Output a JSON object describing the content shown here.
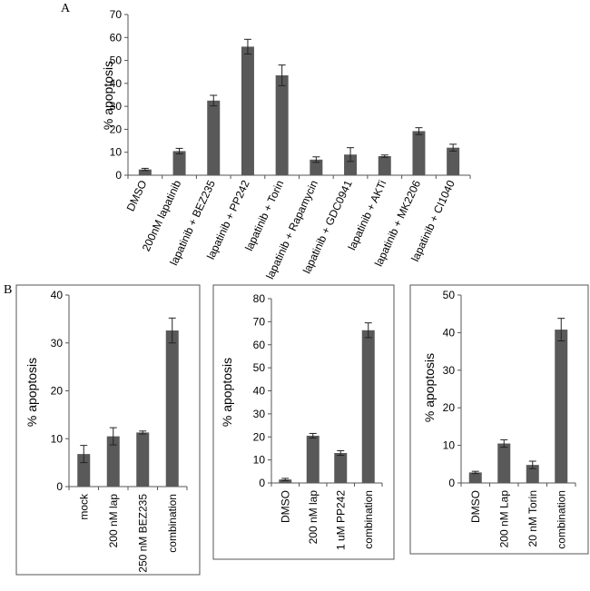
{
  "panel_labels": [
    "A",
    "B"
  ],
  "chart_data": [
    {
      "type": "bar",
      "panel": "A",
      "title": "",
      "ylabel": "% apoptosis",
      "xlabel": "",
      "ylim": [
        0,
        70
      ],
      "yticks": [
        0,
        10,
        20,
        30,
        40,
        50,
        60,
        70
      ],
      "categories": [
        "DMSO",
        "200nM lapatinib",
        "lapatinib + BEZ235",
        "lapatinib + PP242",
        "lapatinib + Torin",
        "lapatinib + Rapamycin",
        "lapatinib + GDC0941",
        "lapatinib + AKTi",
        "lapatinib + MK2206",
        "lapatinib + CI1040"
      ],
      "values": [
        2.5,
        10.5,
        32.5,
        56,
        43.5,
        6.8,
        9,
        8.3,
        19.2,
        12
      ],
      "errors": [
        0.5,
        1.2,
        2.3,
        3.2,
        4.5,
        1.2,
        3,
        0.5,
        1.5,
        1.5
      ],
      "color": "#595959"
    },
    {
      "type": "bar",
      "panel": "B1",
      "ylabel": "% apoptosis",
      "ylim": [
        0,
        40
      ],
      "yticks": [
        0,
        10,
        20,
        30,
        40
      ],
      "categories": [
        "mock",
        "200 nM lap",
        "250 nM BEZ235",
        "combination"
      ],
      "values": [
        6.8,
        10.5,
        11.3,
        32.6
      ],
      "errors": [
        1.8,
        1.8,
        0.3,
        2.6
      ],
      "color": "#595959"
    },
    {
      "type": "bar",
      "panel": "B2",
      "ylabel": "% apoptosis",
      "ylim": [
        0,
        80
      ],
      "yticks": [
        0,
        10,
        20,
        30,
        40,
        50,
        60,
        70,
        80
      ],
      "categories": [
        "DMSO",
        "200 nM lap",
        "1 uM PP242",
        "combination"
      ],
      "values": [
        1.5,
        20.5,
        13,
        66.3
      ],
      "errors": [
        0.5,
        1,
        1,
        3.2
      ],
      "color": "#595959"
    },
    {
      "type": "bar",
      "panel": "B3",
      "ylabel": "% apoptosis",
      "ylim": [
        0,
        50
      ],
      "yticks": [
        0,
        10,
        20,
        30,
        40,
        50
      ],
      "categories": [
        "DMSO",
        "200 nM Lap",
        "20 nM Torin",
        "combination"
      ],
      "values": [
        2.8,
        10.5,
        4.8,
        40.8
      ],
      "errors": [
        0.3,
        1,
        1,
        3
      ],
      "color": "#595959"
    }
  ]
}
